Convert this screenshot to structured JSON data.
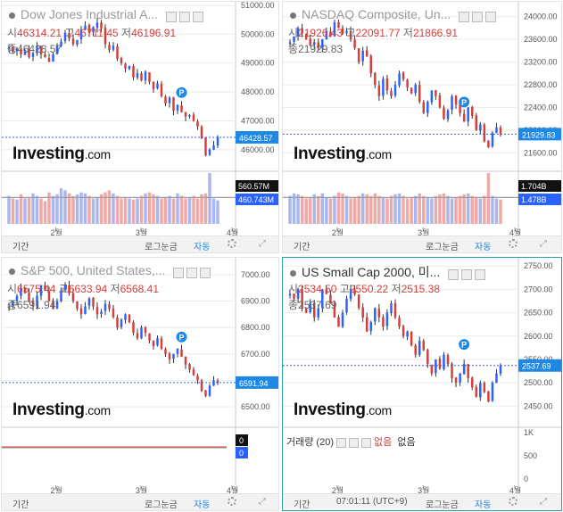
{
  "colors": {
    "up": "#2962ff",
    "down": "#d43f3a",
    "grid": "#e9ebee",
    "axis": "#555555",
    "dash": "#2962ff",
    "price_tag": "#1e88e5"
  },
  "month_labels": [
    "2월",
    "3월",
    "4월"
  ],
  "bottom_bar": {
    "period": "기간",
    "log": "로그눈금",
    "auto": "자동",
    "time": "07:01:11 (UTC+9)"
  },
  "panels": [
    {
      "id": "dow",
      "title": "Dow Jones Industrial A...",
      "ohlc": {
        "open_label": "시",
        "open": "46314.21",
        "high_label": "고",
        "high": "46711.45",
        "low_label": "저",
        "low": "46196.91",
        "close_label": "종",
        "close": "46428.57"
      },
      "logo": {
        "brand": "Investing",
        "domain": ".com"
      },
      "marker": "P",
      "last_price": "46428.57",
      "vol_tags": [
        "560.57M",
        "460.743M"
      ],
      "chart_data": {
        "type": "candlestick",
        "title": "Dow Jones Industrial Average",
        "ylim": [
          45500,
          51000
        ],
        "yticks": [
          51000,
          50000,
          49000,
          48000,
          47000,
          46000
        ],
        "ytick_labels": [
          "51000.00",
          "50000.00",
          "49000.00",
          "48000.00",
          "47000.00",
          "46000.00"
        ],
        "closes": [
          49550,
          49400,
          49500,
          49300,
          49450,
          49200,
          49350,
          49600,
          49300,
          49200,
          49050,
          49300,
          49600,
          49750,
          50050,
          49850,
          49650,
          49800,
          50150,
          50300,
          50050,
          50250,
          50400,
          50200,
          49650,
          49450,
          49600,
          49150,
          49000,
          48800,
          48900,
          48500,
          48650,
          48400,
          48700,
          48350,
          48100,
          48300,
          47850,
          47600,
          47800,
          47350,
          47550,
          47300,
          47150,
          47200,
          47000,
          46800,
          46400,
          45800,
          46000,
          46150,
          46428
        ],
        "volume": [
          0.55,
          0.5,
          0.48,
          0.58,
          0.5,
          0.52,
          0.6,
          0.55,
          0.5,
          0.45,
          0.62,
          0.55,
          0.58,
          0.7,
          0.66,
          0.6,
          0.55,
          0.58,
          0.62,
          0.6,
          0.55,
          0.5,
          0.52,
          0.58,
          0.62,
          0.66,
          0.6,
          0.55,
          0.5,
          0.52,
          0.5,
          0.48,
          0.5,
          0.55,
          0.6,
          0.62,
          0.58,
          0.55,
          0.5,
          0.52,
          0.55,
          0.5,
          0.6,
          0.55,
          0.5,
          0.52,
          0.55,
          0.5,
          0.58,
          0.6,
          1.0,
          0.5,
          0.46
        ],
        "volume_ma": [
          0.52,
          0.52
        ]
      }
    },
    {
      "id": "nasdaq",
      "title": "NASDAQ Composite, Un...",
      "ohlc": {
        "open_label": "시",
        "open": "21926.43",
        "high_label": "고",
        "high": "22091.77",
        "low_label": "저",
        "low": "21866.91",
        "close_label": "종",
        "close": "21929.83"
      },
      "logo": {
        "brand": "Investing",
        "domain": ".com"
      },
      "marker": "P",
      "last_price": "21929.83",
      "vol_tags": [
        "1.704B",
        "1.478B"
      ],
      "chart_data": {
        "type": "candlestick",
        "title": "NASDAQ Composite",
        "ylim": [
          21400,
          24200
        ],
        "yticks": [
          24000,
          23600,
          23200,
          22800,
          22400,
          22000,
          21600
        ],
        "ytick_labels": [
          "24000.00",
          "23600.00",
          "23200.00",
          "22800.00",
          "22400.00",
          "22000.00",
          "21600.00"
        ],
        "closes": [
          23550,
          23650,
          23800,
          23700,
          23600,
          23500,
          23550,
          23450,
          23600,
          23750,
          23650,
          23900,
          23800,
          23700,
          23750,
          23600,
          23450,
          23200,
          23400,
          23300,
          23000,
          22800,
          22600,
          22900,
          22700,
          22600,
          22800,
          23000,
          22900,
          22750,
          22650,
          22800,
          22500,
          22300,
          22500,
          22700,
          22600,
          22400,
          22200,
          22350,
          22600,
          22450,
          22300,
          22150,
          22400,
          22250,
          22000,
          22100,
          21800,
          21700,
          21950,
          22050,
          21929
        ],
        "volume": [
          0.55,
          0.6,
          0.58,
          0.55,
          0.5,
          0.52,
          0.58,
          0.55,
          0.6,
          0.52,
          0.5,
          0.55,
          0.62,
          0.6,
          0.55,
          0.5,
          0.52,
          0.55,
          0.6,
          0.58,
          0.55,
          0.6,
          0.55,
          0.52,
          0.5,
          0.55,
          0.58,
          0.6,
          0.55,
          0.5,
          0.52,
          0.55,
          0.6,
          0.55,
          0.52,
          0.5,
          0.55,
          0.58,
          0.6,
          0.55,
          0.5,
          0.52,
          0.55,
          0.58,
          0.6,
          0.55,
          0.52,
          0.5,
          0.55,
          1.0,
          0.55,
          0.5,
          0.48
        ],
        "volume_ma": [
          0.52,
          0.52
        ]
      }
    },
    {
      "id": "sp500",
      "title": "S&P 500, United States,...",
      "ohlc": {
        "open_label": "시",
        "open": "6575.44",
        "high_label": "고",
        "high": "6633.94",
        "low_label": "저",
        "low": "6568.41",
        "close_label": "종",
        "close": "6591.94"
      },
      "logo": {
        "brand": "Investing",
        "domain": ".com"
      },
      "marker": "P",
      "last_price": "6591.94",
      "vol_tags": [
        "0",
        "0"
      ],
      "chart_data": {
        "type": "candlestick",
        "title": "S&P 500",
        "ylim": [
          6450,
          7050
        ],
        "yticks": [
          7000,
          6900,
          6800,
          6700,
          6600,
          6500
        ],
        "ytick_labels": [
          "7000.00",
          "6900.00",
          "6800.00",
          "6700.00",
          "6600.00",
          "6500.00"
        ],
        "closes": [
          6880,
          6900,
          6920,
          6950,
          6930,
          6900,
          6880,
          6920,
          6960,
          6940,
          6900,
          6870,
          6900,
          6940,
          6960,
          6930,
          6900,
          6870,
          6850,
          6880,
          6910,
          6880,
          6850,
          6860,
          6890,
          6870,
          6840,
          6800,
          6830,
          6850,
          6820,
          6780,
          6760,
          6800,
          6780,
          6750,
          6730,
          6760,
          6720,
          6700,
          6680,
          6700,
          6720,
          6690,
          6660,
          6640,
          6620,
          6600,
          6560,
          6540,
          6580,
          6600,
          6592
        ],
        "volume": [],
        "volume_ma": [
          0,
          0
        ]
      }
    },
    {
      "id": "russell",
      "title": "US Small Cap 2000, 미...",
      "ohlc": {
        "open_label": "시",
        "open": "2534.50",
        "high_label": "고",
        "high": "2550.22",
        "low_label": "저",
        "low": "2515.38",
        "close_label": "종",
        "close": "2537.69"
      },
      "logo": {
        "brand": "Investing",
        "domain": ".com"
      },
      "marker": "P",
      "last_price": "2537.69",
      "vol_legend": {
        "label": "거래량 (20)",
        "v1": "없음",
        "v2": "없음"
      },
      "vol_axis": [
        "1K",
        "500",
        "0"
      ],
      "chart_data": {
        "type": "candlestick",
        "title": "US Small Cap 2000",
        "ylim": [
          2420,
          2760
        ],
        "yticks": [
          2750,
          2700,
          2650,
          2600,
          2550,
          2500,
          2450
        ],
        "ytick_labels": [
          "2750.00",
          "2700.00",
          "2650.00",
          "2600.00",
          "2550.00",
          "2500.00",
          "2450.00"
        ],
        "closes": [
          2690,
          2680,
          2700,
          2660,
          2650,
          2670,
          2640,
          2660,
          2700,
          2690,
          2670,
          2640,
          2620,
          2650,
          2680,
          2700,
          2690,
          2660,
          2640,
          2610,
          2630,
          2660,
          2640,
          2620,
          2650,
          2670,
          2640,
          2620,
          2600,
          2610,
          2580,
          2560,
          2590,
          2570,
          2540,
          2520,
          2550,
          2530,
          2560,
          2540,
          2510,
          2500,
          2520,
          2540,
          2510,
          2490,
          2470,
          2500,
          2480,
          2460,
          2500,
          2520,
          2537
        ]
      }
    }
  ]
}
